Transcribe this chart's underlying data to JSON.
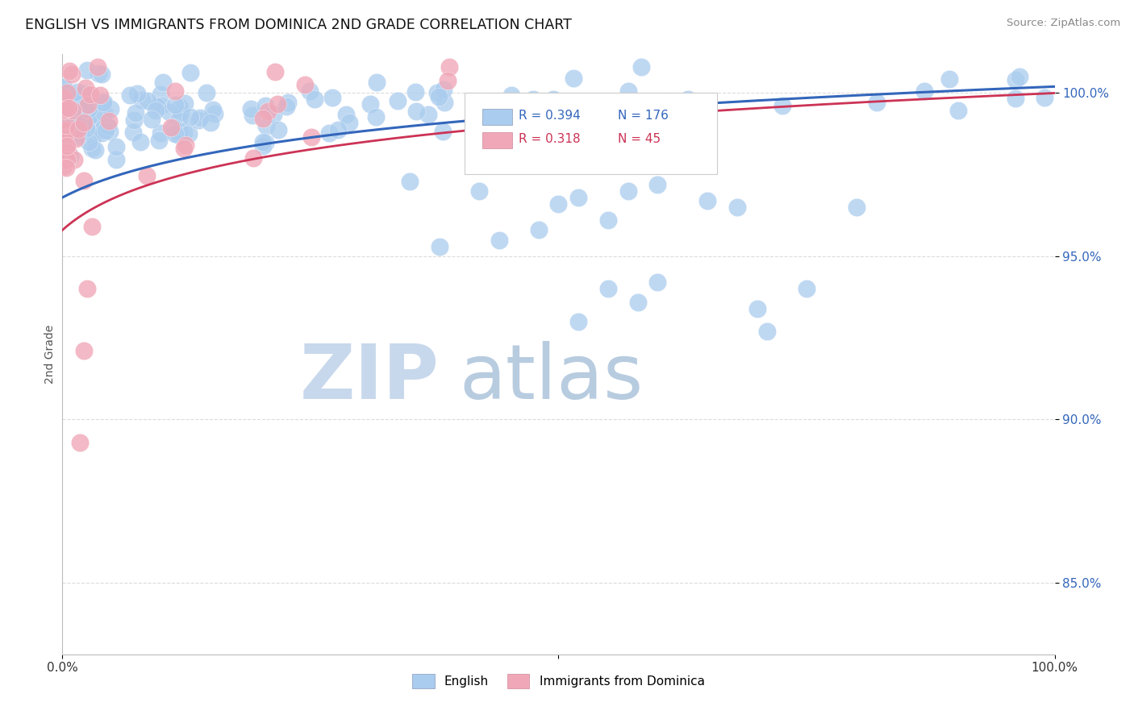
{
  "title": "ENGLISH VS IMMIGRANTS FROM DOMINICA 2ND GRADE CORRELATION CHART",
  "source": "Source: ZipAtlas.com",
  "ylabel": "2nd Grade",
  "xlim": [
    0.0,
    1.0
  ],
  "ylim": [
    0.828,
    1.012
  ],
  "yticks": [
    0.85,
    0.9,
    0.95,
    1.0
  ],
  "ytick_labels": [
    "85.0%",
    "90.0%",
    "95.0%",
    "100.0%"
  ],
  "legend_english": "English",
  "legend_dominica": "Immigrants from Dominica",
  "R_english": 0.394,
  "N_english": 176,
  "R_dominica": 0.318,
  "N_dominica": 45,
  "english_color": "#aaccee",
  "dominica_color": "#f0a8b8",
  "english_line_color": "#3366bb",
  "dominica_line_color": "#cc3355",
  "watermark_zip": "ZIP",
  "watermark_atlas": "atlas",
  "watermark_color_zip": "#c8d8ec",
  "watermark_color_atlas": "#b8cce0",
  "background_color": "#ffffff",
  "grid_color": "#cccccc"
}
